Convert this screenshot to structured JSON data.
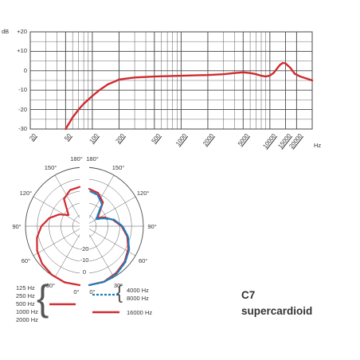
{
  "chart_data": [
    {
      "type": "line",
      "xscale": "log",
      "xlim": [
        20,
        30000
      ],
      "ylim": [
        -30,
        20
      ],
      "xticks": [
        20,
        50,
        100,
        200,
        500,
        1000,
        2000,
        5000,
        10000,
        15000,
        20000
      ],
      "xtick_labels": [
        "20",
        "50",
        "100",
        "200",
        "500",
        "1000",
        "2000",
        "5000",
        "10000",
        "15000",
        "20000"
      ],
      "xunit": "Hz",
      "yticks": [
        20,
        10,
        0,
        -10,
        -20,
        -30
      ],
      "ytick_labels": [
        "+20",
        "+10",
        "0",
        "-10",
        "-20",
        "-30"
      ],
      "yunit": "dB",
      "grid": true,
      "series": [
        {
          "color": "#d12a2f",
          "x": [
            50,
            60,
            70,
            80,
            100,
            120,
            150,
            180,
            200,
            300,
            500,
            1000,
            2000,
            3000,
            4000,
            5000,
            6000,
            7000,
            8000,
            9000,
            10000,
            11000,
            12000,
            13000,
            14000,
            15000,
            17000,
            19000,
            22000,
            26000,
            30000
          ],
          "y": [
            -30,
            -24,
            -20,
            -17,
            -13,
            -10,
            -7,
            -5.5,
            -4.5,
            -3.5,
            -3,
            -2.6,
            -2.2,
            -1.8,
            -1.2,
            -0.8,
            -1.2,
            -1.8,
            -2.6,
            -3,
            -2.5,
            -1.2,
            1,
            3,
            4,
            3.8,
            1.5,
            -1.5,
            -3,
            -4,
            -5
          ]
        }
      ]
    },
    {
      "type": "polar",
      "angle_labels": [
        "180°",
        "150°",
        "120°",
        "90°",
        "60°",
        "30°",
        "0°"
      ],
      "radial_labels": [
        "-20",
        "-10",
        "0"
      ],
      "r_range_db": [
        -30,
        0
      ],
      "series": [
        {
          "name": "125 Hz, 250 Hz, 500 Hz, 1000 Hz, 2000 Hz",
          "color": "#d12a2f",
          "theta": [
            0,
            15,
            30,
            45,
            60,
            75,
            90,
            105,
            120,
            135,
            150,
            165,
            180
          ],
          "db": [
            0,
            -0.4,
            -1.5,
            -3,
            -5,
            -7.5,
            -10.5,
            -14,
            -18,
            -22,
            -14,
            -11,
            -10
          ]
        },
        {
          "name": "4000 Hz, 8000 Hz",
          "color": "#1a7fc1",
          "dashed": true,
          "theta": [
            0,
            15,
            30,
            45,
            60,
            75,
            90,
            105,
            120,
            135,
            150,
            165,
            180
          ],
          "db": [
            0,
            -0.6,
            -2,
            -4,
            -6.5,
            -9.5,
            -13,
            -17,
            -22,
            -25,
            -17,
            -13.5,
            -12
          ]
        },
        {
          "name": "16000 Hz",
          "color": "#d12a2f",
          "theta": [
            0,
            15,
            30,
            45,
            60,
            75,
            90,
            105,
            120,
            135,
            150,
            165,
            180
          ],
          "db": [
            0,
            -0.8,
            -2.5,
            -4.5,
            -7,
            -10,
            -13.5,
            -17.5,
            -21,
            -24,
            -16,
            -12.5,
            -11
          ]
        }
      ]
    }
  ],
  "product": {
    "model": "C7",
    "pattern": "supercardioid"
  },
  "legend": {
    "group1_lines": [
      "125 Hz",
      "250 Hz",
      "500 Hz",
      "1000 Hz",
      "2000 Hz"
    ],
    "group2_lines": [
      "4000 Hz",
      "8000 Hz"
    ],
    "group3_lines": [
      "16000 Hz"
    ]
  },
  "colors": {
    "red": "#d12a2f",
    "blue": "#1a7fc1",
    "grid": "#4a4a4a"
  }
}
